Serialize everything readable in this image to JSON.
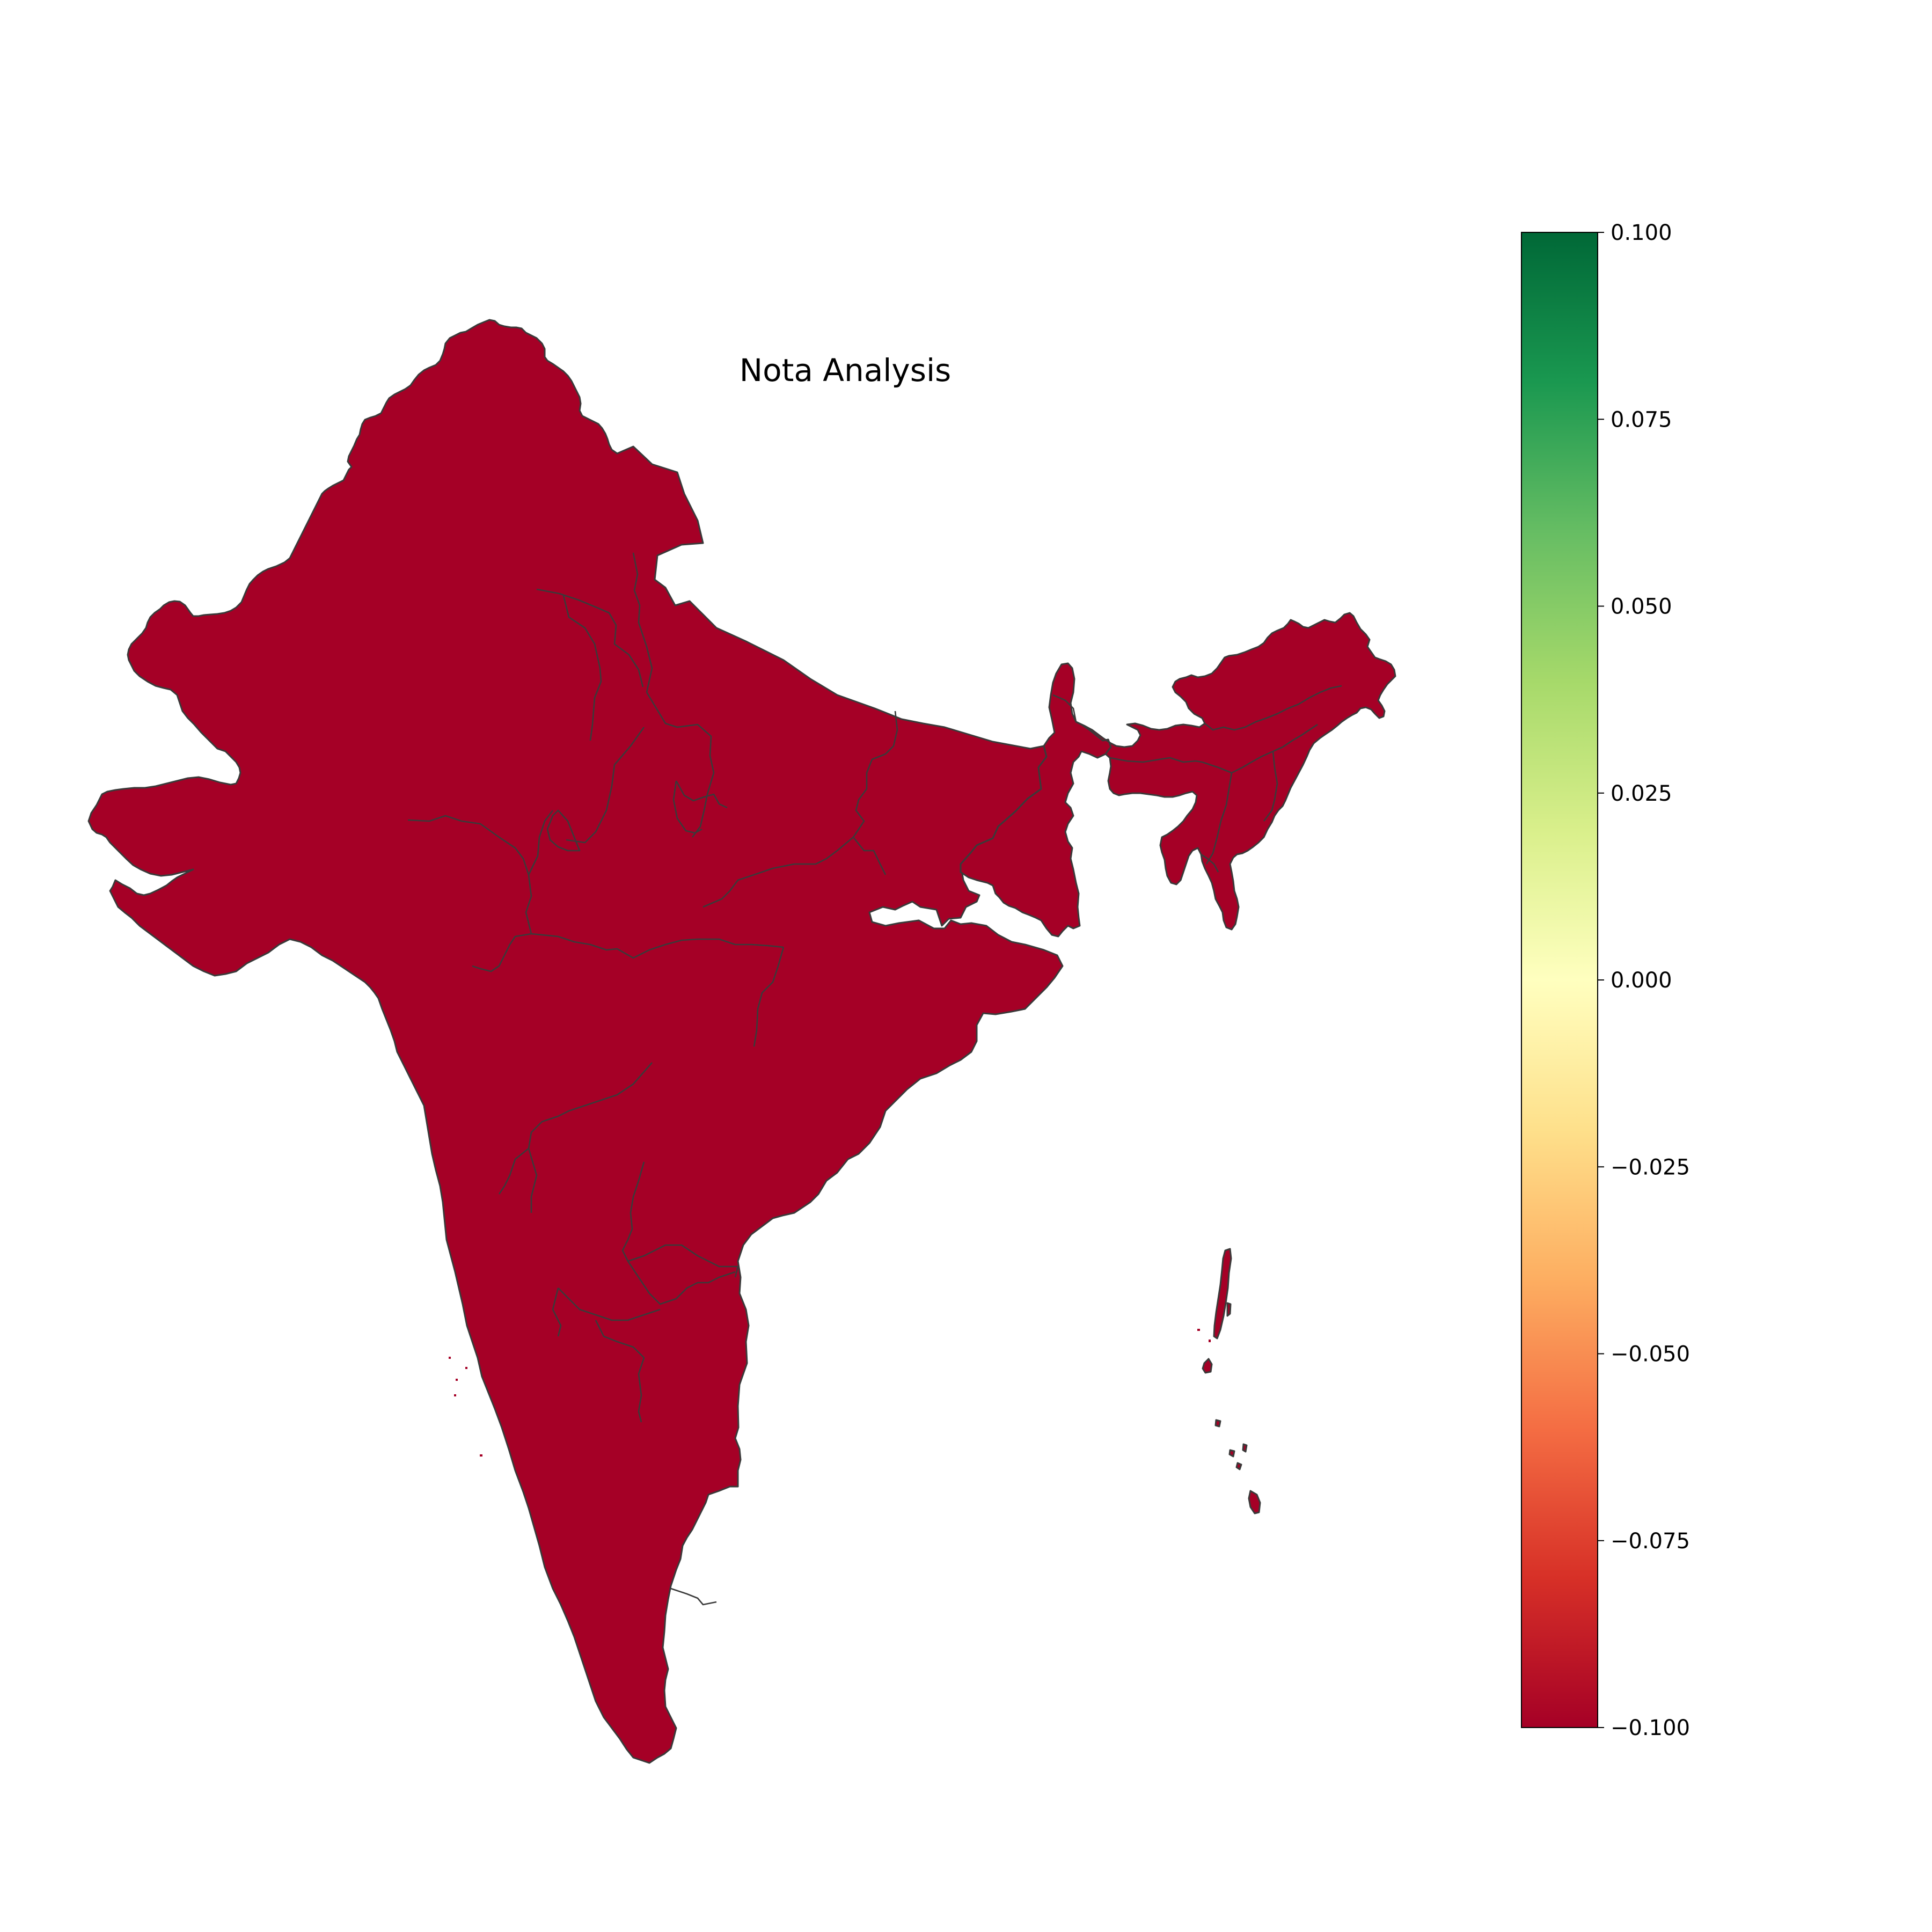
{
  "chart_data": {
    "type": "choropleth",
    "title": "Nota Analysis",
    "region_value": -0.1,
    "region_color": "#a50026",
    "colorbar": {
      "min": -0.1,
      "max": 0.1,
      "colormap": "RdYlGn",
      "ticks": [
        {
          "value": 0.1,
          "label": "0.100"
        },
        {
          "value": 0.075,
          "label": "0.075"
        },
        {
          "value": 0.05,
          "label": "0.050"
        },
        {
          "value": 0.025,
          "label": "0.025"
        },
        {
          "value": 0.0,
          "label": "0.000"
        },
        {
          "value": -0.025,
          "label": "−0.025"
        },
        {
          "value": -0.05,
          "label": "−0.050"
        },
        {
          "value": -0.075,
          "label": "−0.075"
        },
        {
          "value": -0.1,
          "label": "−0.100"
        }
      ],
      "gradient_colors": [
        "#006837",
        "#1a9850",
        "#66bd63",
        "#a6d96a",
        "#d9ef8b",
        "#ffffbf",
        "#fee08b",
        "#fdae61",
        "#f46d43",
        "#d73027",
        "#a50026"
      ]
    }
  }
}
